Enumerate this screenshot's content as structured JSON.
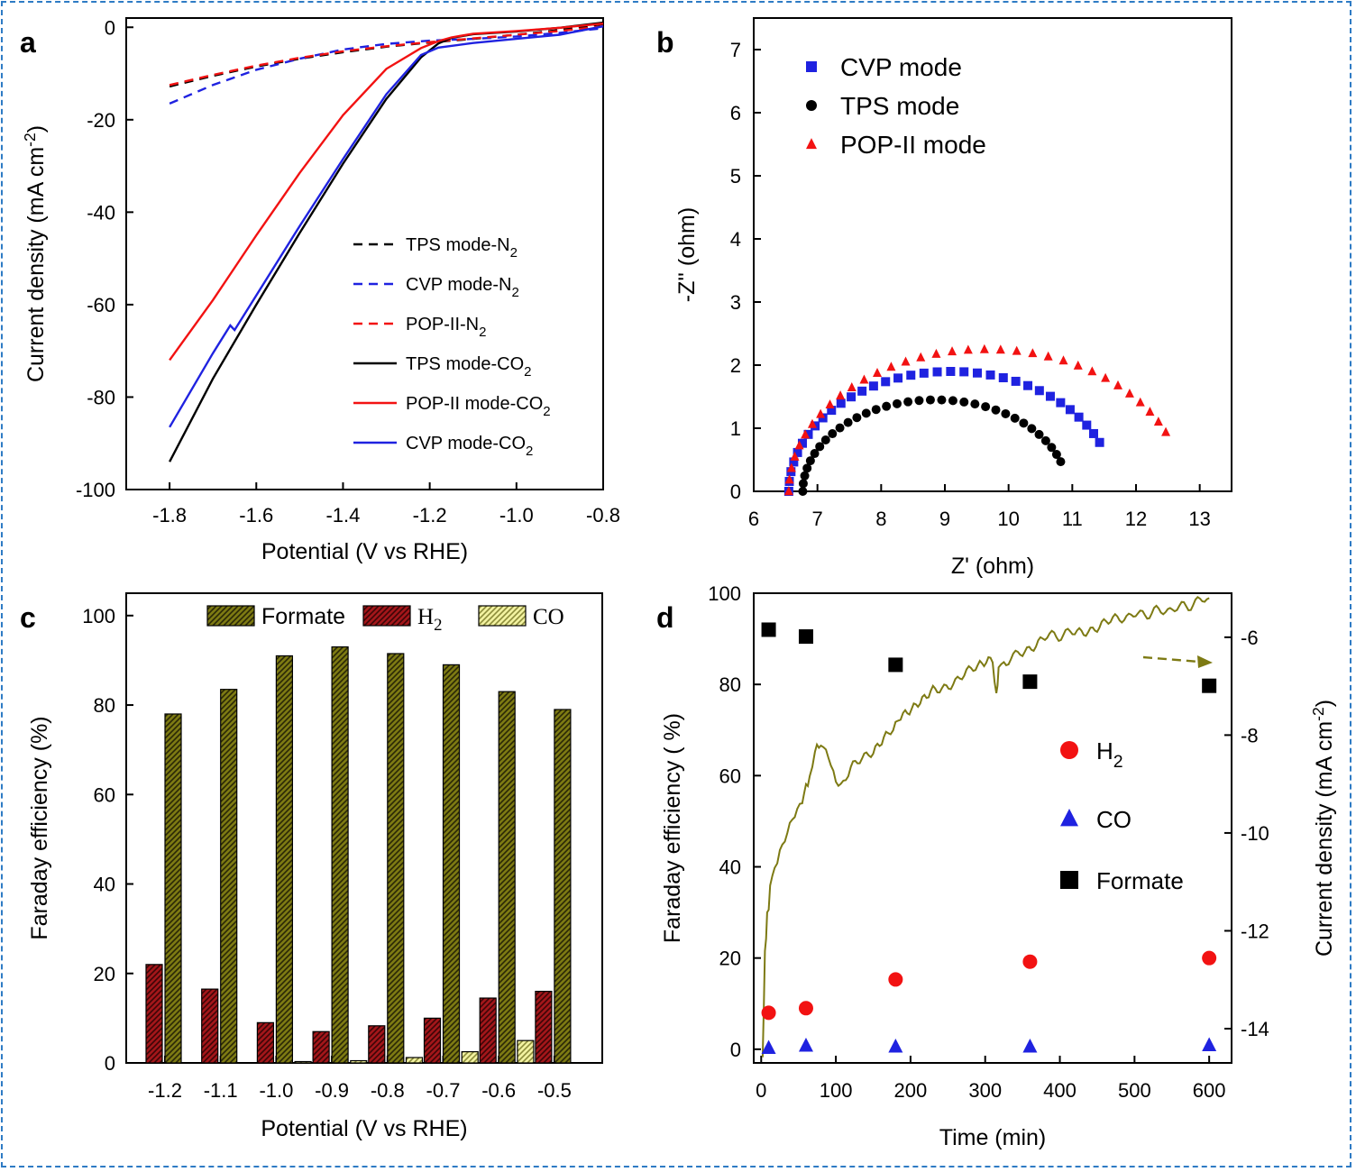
{
  "chart_data": [
    {
      "panel": "a",
      "type": "line",
      "xlabel": "Potential (V vs RHE)",
      "ylabel": "Current density (mA cm",
      "ylabel_sup": "-2",
      "ylabel_end": ")",
      "xlim": [
        -1.9,
        -0.8
      ],
      "ylim": [
        -100,
        2
      ],
      "xticks": [
        -1.8,
        -1.6,
        -1.4,
        -1.2,
        -1.0,
        -0.8
      ],
      "xtick_labels": [
        "-1.8",
        "-1.6",
        "-1.4",
        "-1.2",
        "-1.0",
        "-0.8"
      ],
      "yticks": [
        0,
        -20,
        -40,
        -60,
        -80,
        -100
      ],
      "ytick_labels": [
        "0",
        "-20",
        "-40",
        "-60",
        "-80",
        "-100"
      ],
      "legend": [
        {
          "text": "TPS mode-N",
          "sub": "2",
          "post": "",
          "color": "#000000",
          "dash": true
        },
        {
          "text": "CVP mode-N",
          "sub": "2",
          "post": "",
          "color": "#1f22e0",
          "dash": true
        },
        {
          "text": "POP-II-N",
          "sub": "2",
          "post": "",
          "color": "#f21212",
          "dash": true
        },
        {
          "text": "TPS mode-CO",
          "sub": "2",
          "post": "",
          "color": "#000000",
          "dash": false
        },
        {
          "text": "POP-II mode-CO",
          "sub": "2",
          "post": "",
          "color": "#f21212",
          "dash": false
        },
        {
          "text": "CVP mode-CO",
          "sub": "2",
          "post": "",
          "color": "#1f22e0",
          "dash": false
        }
      ],
      "series": [
        {
          "name": "TPS mode-N2",
          "color": "#000000",
          "dash": true,
          "x": [
            -1.8,
            -1.7,
            -1.6,
            -1.5,
            -1.4,
            -1.3,
            -1.2,
            -1.1,
            -1.0,
            -0.9,
            -0.8
          ],
          "y": [
            -12.8,
            -10.5,
            -8.5,
            -6.8,
            -5.4,
            -4.2,
            -3.3,
            -2.5,
            -1.6,
            -0.6,
            0.7
          ]
        },
        {
          "name": "CVP mode-N2",
          "color": "#1f22e0",
          "dash": true,
          "x": [
            -1.8,
            -1.7,
            -1.6,
            -1.5,
            -1.4,
            -1.3,
            -1.2,
            -1.1,
            -1.0,
            -0.9,
            -0.8
          ],
          "y": [
            -16.5,
            -12.5,
            -9.2,
            -6.8,
            -4.8,
            -3.6,
            -2.9,
            -2.5,
            -2.0,
            -1.2,
            -0.2
          ]
        },
        {
          "name": "POP-II-N2",
          "color": "#f21212",
          "dash": true,
          "x": [
            -1.8,
            -1.7,
            -1.6,
            -1.5,
            -1.4,
            -1.3,
            -1.2,
            -1.1,
            -1.0,
            -0.9,
            -0.8
          ],
          "y": [
            -12.5,
            -10.3,
            -8.3,
            -6.6,
            -5.2,
            -4.1,
            -3.2,
            -2.4,
            -1.6,
            -0.8,
            0.2
          ]
        },
        {
          "name": "TPS mode-CO2",
          "color": "#000000",
          "dash": false,
          "x": [
            -1.8,
            -1.7,
            -1.6,
            -1.5,
            -1.4,
            -1.3,
            -1.22,
            -1.18,
            -1.15,
            -1.1,
            -1.0,
            -0.9,
            -0.8
          ],
          "y": [
            -94,
            -76,
            -60,
            -44.5,
            -29.5,
            -15.5,
            -6.5,
            -3.5,
            -2.3,
            -1.5,
            -0.9,
            -0.1,
            1.0
          ]
        },
        {
          "name": "POP-II mode-CO2",
          "color": "#f21212",
          "dash": false,
          "x": [
            -1.8,
            -1.7,
            -1.6,
            -1.5,
            -1.4,
            -1.3,
            -1.22,
            -1.18,
            -1.15,
            -1.1,
            -1.0,
            -0.9,
            -0.8
          ],
          "y": [
            -72,
            -59,
            -45,
            -31.5,
            -19,
            -9,
            -4.5,
            -3.0,
            -2.2,
            -1.4,
            -0.8,
            -0.1,
            0.8
          ]
        },
        {
          "name": "CVP mode-CO2",
          "color": "#1f22e0",
          "dash": false,
          "x": [
            -1.8,
            -1.7,
            -1.66,
            -1.65,
            -1.6,
            -1.5,
            -1.4,
            -1.3,
            -1.22,
            -1.18,
            -1.1,
            -1.0,
            -0.9,
            -0.8
          ],
          "y": [
            -86.5,
            -70.5,
            -64.5,
            -65.5,
            -58,
            -43,
            -28.5,
            -14.5,
            -6.0,
            -4.4,
            -3.4,
            -2.5,
            -1.6,
            0.2
          ]
        }
      ]
    },
    {
      "panel": "b",
      "type": "scatter",
      "xlabel": "Z' (ohm)",
      "ylabel": "-Z'' (ohm)",
      "xlim": [
        6,
        13.5
      ],
      "ylim": [
        0,
        7.5
      ],
      "xticks": [
        6,
        7,
        8,
        9,
        10,
        11,
        12,
        13
      ],
      "xtick_labels": [
        "6",
        "7",
        "8",
        "9",
        "10",
        "11",
        "12",
        "13"
      ],
      "yticks": [
        0,
        1,
        2,
        3,
        4,
        5,
        6,
        7
      ],
      "ytick_labels": [
        "0",
        "1",
        "2",
        "3",
        "4",
        "5",
        "6",
        "7"
      ],
      "legend": [
        "CVP mode",
        "TPS mode",
        "POP-II mode"
      ],
      "series": [
        {
          "name": "CVP mode",
          "marker": "square",
          "color": "#1f22e0",
          "center": 9.1,
          "radius": 2.55,
          "height": 1.9,
          "theta_end": 0.42
        },
        {
          "name": "TPS mode",
          "marker": "circle",
          "color": "#000000",
          "center": 8.85,
          "radius": 2.08,
          "height": 1.45,
          "theta_end": 0.33
        },
        {
          "name": "POP-II mode",
          "marker": "triangle",
          "color": "#f21212",
          "center": 9.65,
          "radius": 3.1,
          "height": 2.25,
          "theta_end": 0.43
        }
      ]
    },
    {
      "panel": "c",
      "type": "bar",
      "xlabel": "Potential (V vs RHE)",
      "ylabel": "Faraday efficiency (%)",
      "ylim": [
        0,
        105
      ],
      "yticks": [
        0,
        20,
        40,
        60,
        80,
        100
      ],
      "ytick_labels": [
        "0",
        "20",
        "40",
        "60",
        "80",
        "100"
      ],
      "categories": [
        "-1.2",
        "-1.1",
        "-1.0",
        "-0.9",
        "-0.8",
        "-0.7",
        "-0.6",
        "-0.5"
      ],
      "legend": [
        {
          "text": "Formate",
          "sub": ""
        },
        {
          "text": "H",
          "sub": "2"
        },
        {
          "text": "CO",
          "sub": ""
        }
      ],
      "series": [
        {
          "name": "H2",
          "color": "#a3161a",
          "values": [
            22,
            16.5,
            9,
            7,
            8.3,
            10,
            14.5,
            16
          ]
        },
        {
          "name": "CO",
          "color": "#f2f2a0",
          "values": [
            0,
            0,
            0,
            0.3,
            0.5,
            1.2,
            2.5,
            5
          ]
        },
        {
          "name": "Formate",
          "color": "#7d7a13",
          "values": [
            78,
            83.5,
            91,
            93,
            91.5,
            89,
            83,
            79
          ]
        }
      ]
    },
    {
      "panel": "d",
      "type": "scatter",
      "xlabel": "Time (min)",
      "ylabel": "Faraday efficiency ( %)",
      "y2label": "Current density (mA cm",
      "y2label_sup": "-2",
      "y2label_end": ")",
      "xlim": [
        -10,
        630
      ],
      "ylim": [
        -3,
        100
      ],
      "y2lim": [
        -14.7,
        -5.1
      ],
      "xticks": [
        0,
        100,
        200,
        300,
        400,
        500,
        600
      ],
      "xtick_labels": [
        "0",
        "100",
        "200",
        "300",
        "400",
        "500",
        "600"
      ],
      "yticks": [
        0,
        20,
        40,
        60,
        80,
        100
      ],
      "ytick_labels": [
        "0",
        "20",
        "40",
        "60",
        "80",
        "100"
      ],
      "y2ticks": [
        -6,
        -8,
        -10,
        -12,
        -14
      ],
      "y2tick_labels": [
        "-6",
        "-8",
        "-10",
        "-12",
        "-14"
      ],
      "legend": [
        {
          "text": "H",
          "sub": "2"
        },
        {
          "text": "CO",
          "sub": ""
        },
        {
          "text": "Formate",
          "sub": ""
        }
      ],
      "series": [
        {
          "name": "H2",
          "marker": "circle",
          "color": "#f21212",
          "x": [
            10,
            60,
            180,
            360,
            600
          ],
          "y": [
            8,
            9,
            15.3,
            19.2,
            20
          ]
        },
        {
          "name": "CO",
          "marker": "triangle",
          "color": "#1f22e0",
          "x": [
            10,
            60,
            180,
            360,
            600
          ],
          "y": [
            0.3,
            0.8,
            0.6,
            0.6,
            0.9
          ]
        },
        {
          "name": "Formate",
          "marker": "square",
          "color": "#000000",
          "x": [
            10,
            60,
            180,
            360,
            600
          ],
          "y": [
            92,
            90.5,
            84.3,
            80.6,
            79.7
          ]
        },
        {
          "name": "Current density",
          "axis": "right",
          "color": "#7d7a13",
          "x": [
            2,
            5,
            8,
            12,
            18,
            25,
            35,
            45,
            55,
            60,
            65,
            72,
            80,
            90,
            100,
            110,
            120,
            135,
            150,
            170,
            180,
            190,
            210,
            230,
            260,
            290,
            310,
            315,
            318,
            325,
            350,
            380,
            420,
            450,
            480,
            520,
            560,
            600
          ],
          "y": [
            -14.6,
            -12.5,
            -11.7,
            -11.2,
            -10.7,
            -10.3,
            -10.0,
            -9.7,
            -9.3,
            -9.1,
            -8.8,
            -8.4,
            -8.1,
            -8.5,
            -9.0,
            -8.9,
            -8.7,
            -8.5,
            -8.3,
            -8.0,
            -7.7,
            -7.6,
            -7.3,
            -7.1,
            -6.9,
            -6.6,
            -6.5,
            -7.2,
            -6.6,
            -6.5,
            -6.3,
            -6.0,
            -5.9,
            -5.8,
            -5.6,
            -5.5,
            -5.4,
            -5.2
          ]
        }
      ]
    }
  ]
}
